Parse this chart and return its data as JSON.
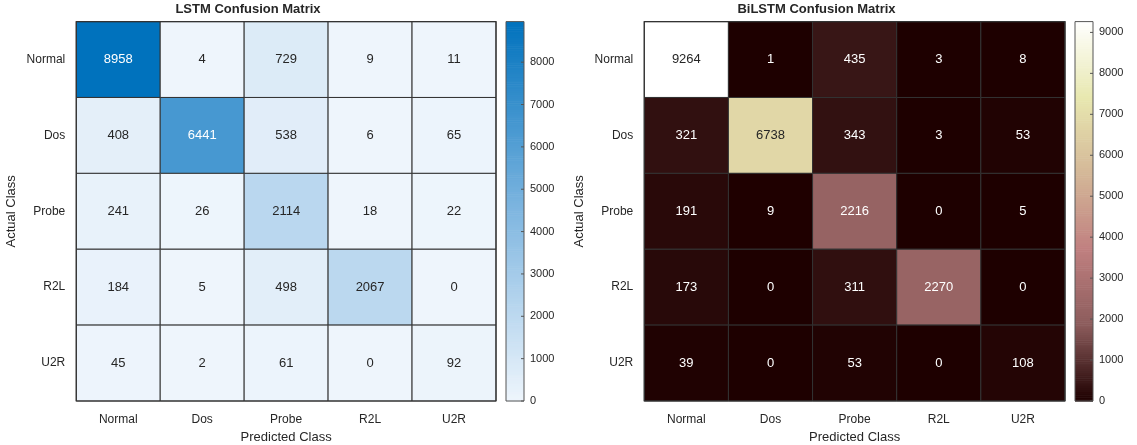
{
  "chart_data": [
    {
      "type": "heatmap",
      "title": "LSTM Confusion Matrix",
      "xlabel": "Predicted Class",
      "ylabel": "Actual Class",
      "categories": [
        "Normal",
        "Dos",
        "Probe",
        "R2L",
        "U2R"
      ],
      "y_categories": [
        "Normal",
        "Dos",
        "Probe",
        "R2L",
        "U2R"
      ],
      "cells": [
        [
          8958,
          4,
          729,
          9,
          11
        ],
        [
          408,
          6441,
          538,
          6,
          65
        ],
        [
          241,
          26,
          2114,
          18,
          22
        ],
        [
          184,
          5,
          498,
          2067,
          0
        ],
        [
          45,
          2,
          61,
          0,
          92
        ]
      ],
      "clim": [
        0,
        8958
      ],
      "cticks": [
        0,
        1000,
        2000,
        3000,
        4000,
        5000,
        6000,
        7000,
        8000
      ],
      "colors": [
        "#eef5fc",
        "#7fb6e0",
        "#0072bd"
      ],
      "data_labels": true
    },
    {
      "type": "heatmap",
      "title": "BiLSTM Confusion Matrix",
      "xlabel": "Predicted Class",
      "ylabel": "Actual Class",
      "categories": [
        "Normal",
        "Dos",
        "Probe",
        "R2L",
        "U2R"
      ],
      "y_categories": [
        "Normal",
        "Dos",
        "Probe",
        "R2L",
        "U2R"
      ],
      "cells": [
        [
          9264,
          1,
          435,
          3,
          8
        ],
        [
          321,
          6738,
          343,
          3,
          53
        ],
        [
          191,
          9,
          2216,
          0,
          5
        ],
        [
          173,
          0,
          311,
          2270,
          0
        ],
        [
          39,
          0,
          53,
          0,
          108
        ]
      ],
      "clim": [
        0,
        9264
      ],
      "cticks": [
        0,
        1000,
        2000,
        3000,
        4000,
        5000,
        6000,
        7000,
        8000,
        9000
      ],
      "colors": [
        "#1e0000",
        "#8c5c5c",
        "#c08080",
        "#d4b898",
        "#e8e8b0",
        "#ffffff"
      ],
      "data_labels": true
    }
  ]
}
